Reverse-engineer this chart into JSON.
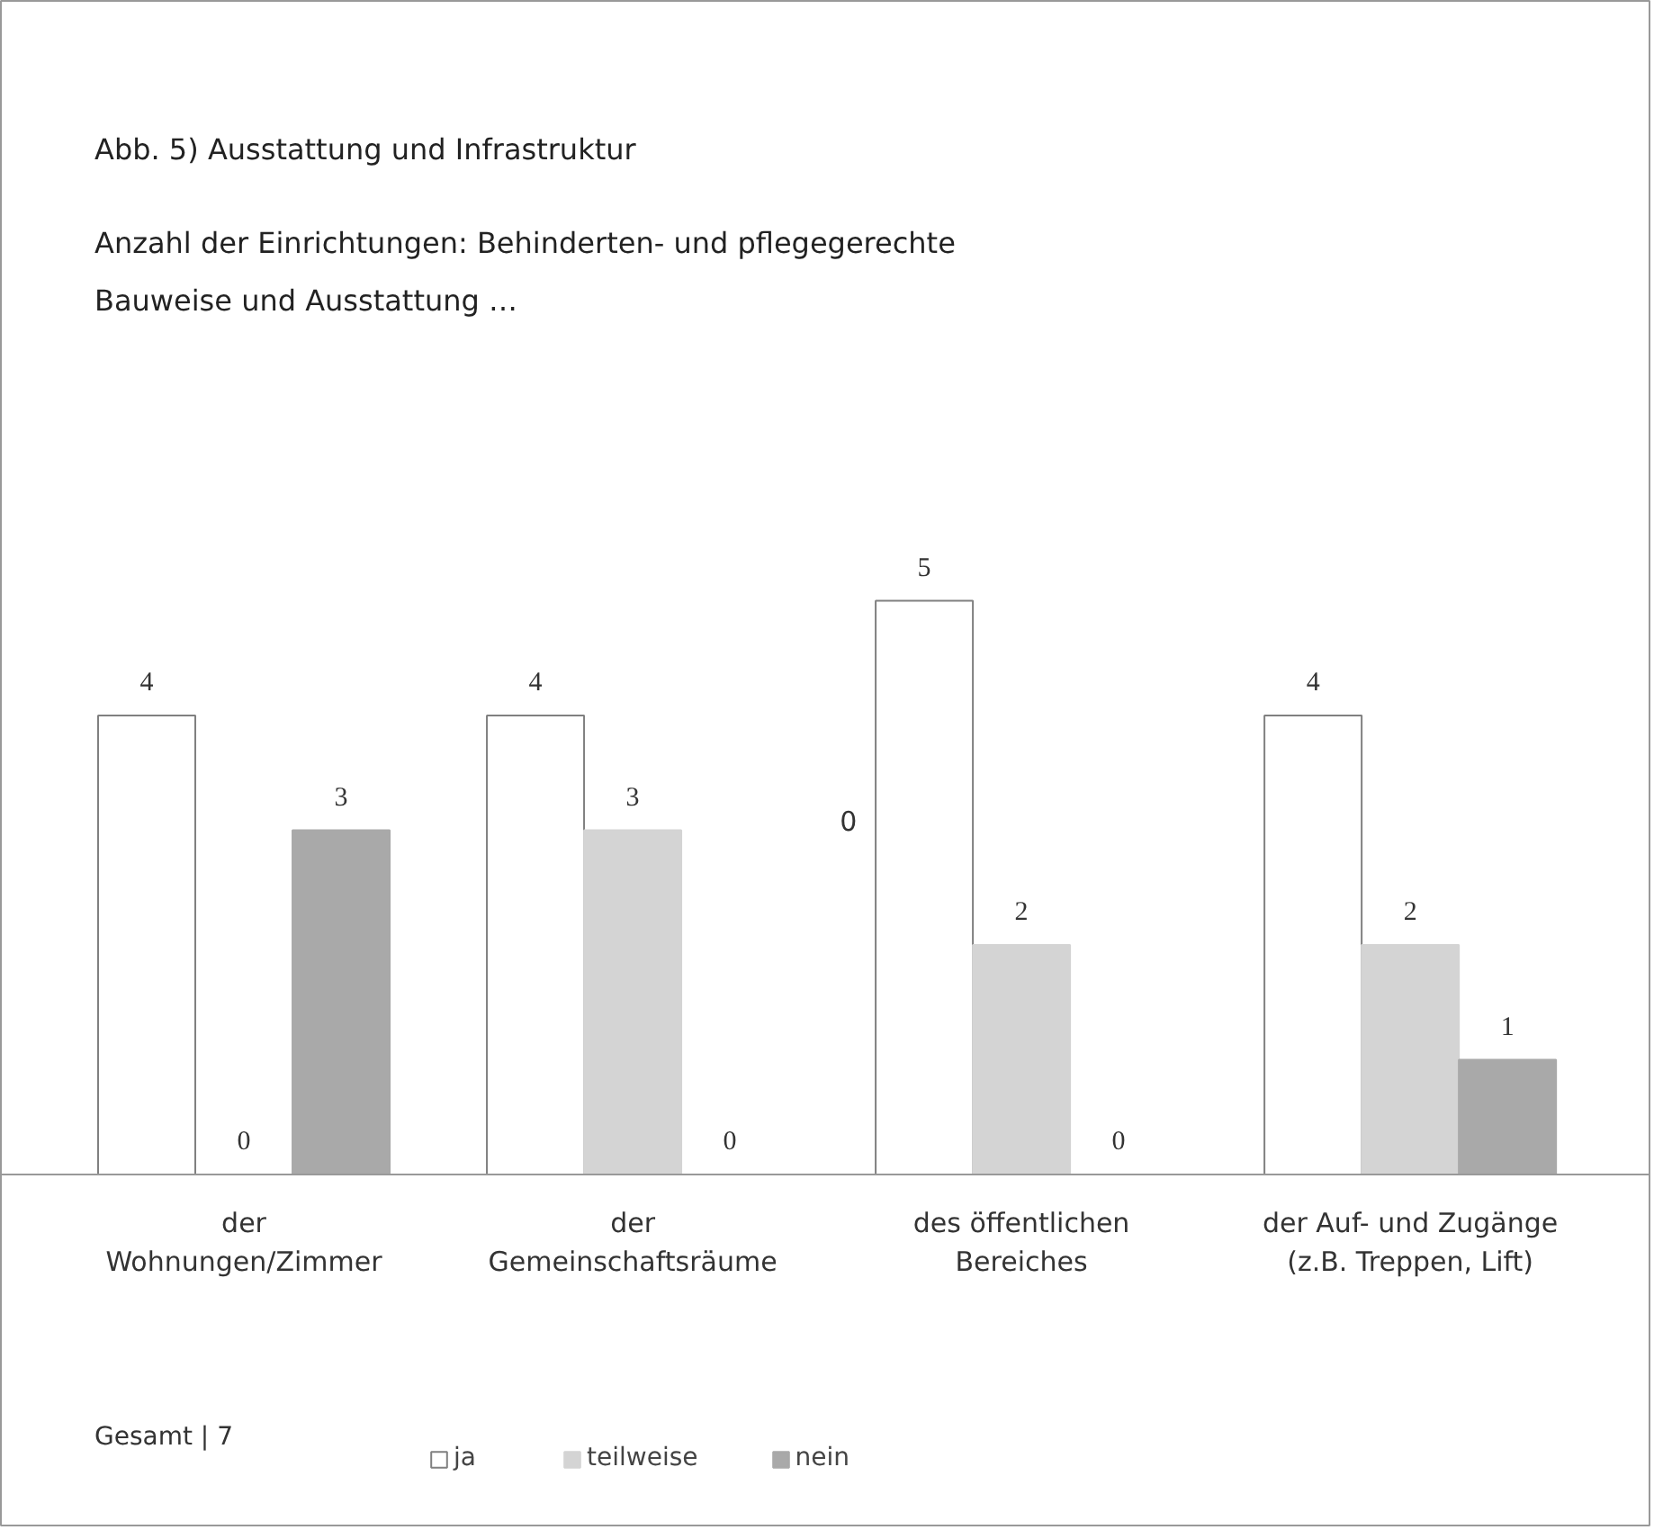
{
  "chart_data": {
    "type": "bar",
    "title": "Abb. 5) Ausstattung und Infrastruktur",
    "subtitle": "Anzahl der Einrichtungen: Behinderten- und pflegegerechte\nBauweise und Ausstattung …",
    "categories": [
      "der\nWohnungen/Zimmer",
      "der\nGemeinschaftsräume",
      "des öffentlichen\nBereiches",
      "der Auf- und Zugänge\n(z.B. Treppen, Lift)"
    ],
    "series": [
      {
        "name": "ja",
        "color": "#ffffff",
        "values": [
          4,
          4,
          5,
          4
        ]
      },
      {
        "name": "teilweise",
        "color": "#d4d4d4",
        "values": [
          0,
          3,
          2,
          2
        ]
      },
      {
        "name": "nein",
        "color": "#a9a9a9",
        "values": [
          3,
          0,
          0,
          1
        ]
      }
    ],
    "data_labels": true,
    "legend": "bottom",
    "annotations": [
      "0",
      "Gesamt | 7"
    ]
  }
}
